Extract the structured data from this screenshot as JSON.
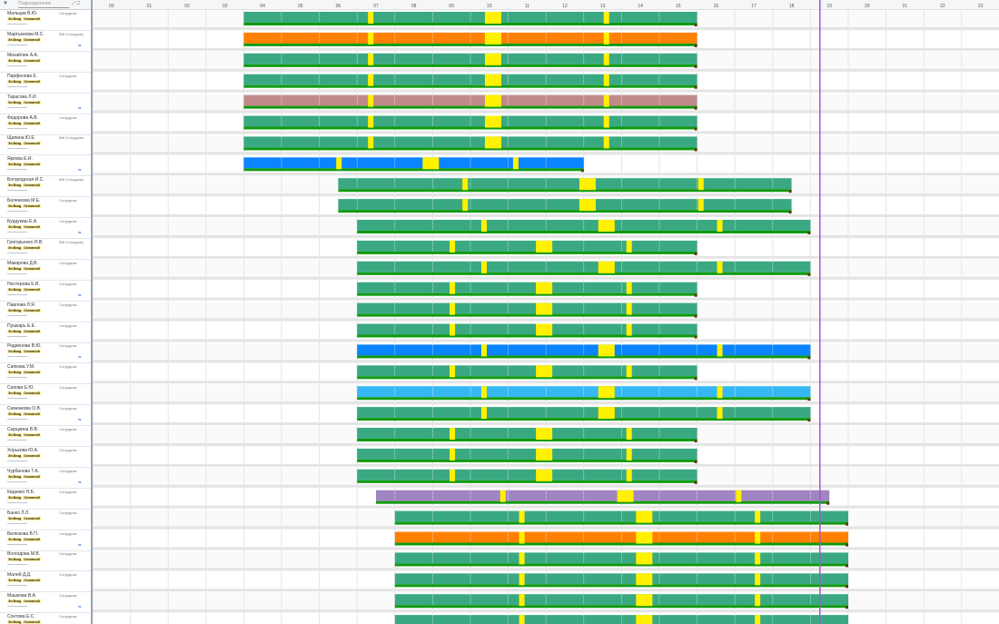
{
  "toolbar": {
    "filter_icon": "filter-icon",
    "search_placeholder": "Подразделение",
    "clear_icon": "close-icon"
  },
  "hour_labels": [
    "00",
    "01",
    "02",
    "03",
    "04",
    "05",
    "06",
    "07",
    "08",
    "09",
    "10",
    "11",
    "12",
    "13",
    "14",
    "15",
    "16",
    "17",
    "18",
    "19",
    "20",
    "21",
    "22",
    "23"
  ],
  "tag_primary": "Эл.Вход",
  "tag_secondary": "Основной",
  "colors": {
    "green": "#3aa982",
    "orange": "#ff7f00",
    "blue": "#0a84ff",
    "lightblue": "#36b8f5",
    "rose": "#c08a8a",
    "purple": "#a184c2",
    "yellow": "#fff100",
    "base": "#119a11",
    "now_line": "#9b59d0"
  },
  "employees": [
    {
      "name": "Мальцев В.Ю.",
      "role": "Сотрудник",
      "color": "green",
      "start": 4,
      "end": 16
    },
    {
      "name": "Мартынкова М.С.",
      "role": "ВЖ Сотрудник",
      "color": "orange",
      "start": 4,
      "end": 16
    },
    {
      "name": "Михайлин А.А.",
      "role": "",
      "color": "green",
      "start": 4,
      "end": 16
    },
    {
      "name": "Парфенова Е.",
      "role": "Сотрудник",
      "color": "green",
      "start": 4,
      "end": 16
    },
    {
      "name": "Тарасова Л.И.",
      "role": "",
      "color": "rose",
      "start": 4,
      "end": 16
    },
    {
      "name": "Федорова А.В.",
      "role": "Сотрудник",
      "color": "green",
      "start": 4,
      "end": 16
    },
    {
      "name": "Щипина Ю.Е.",
      "role": "ВЖ Сотрудник",
      "color": "green",
      "start": 4,
      "end": 16
    },
    {
      "name": "Яркова Е.И.",
      "role": "",
      "color": "blue",
      "start": 4,
      "end": 13
    },
    {
      "name": "Богородская И.С.",
      "role": "ВЖ Сотрудник",
      "color": "green",
      "start": 6.5,
      "end": 18.5
    },
    {
      "name": "Беленкова М.Е.",
      "role": "Сотрудник",
      "color": "green",
      "start": 6.5,
      "end": 18.5
    },
    {
      "name": "Бурдукиш Е.А.",
      "role": "Сотрудник",
      "color": "green",
      "start": 7,
      "end": 19
    },
    {
      "name": "Григорьенко Н.В.",
      "role": "ВЖ Сотрудник",
      "color": "green",
      "start": 7,
      "end": 16
    },
    {
      "name": "Макарова Д.В.",
      "role": "Сотрудник",
      "color": "green",
      "start": 7,
      "end": 19
    },
    {
      "name": "Нестерова Е.В.",
      "role": "Сотрудник",
      "color": "green",
      "start": 7,
      "end": 16
    },
    {
      "name": "Павлова Л.Я.",
      "role": "Сотрудник",
      "color": "green",
      "start": 7,
      "end": 16
    },
    {
      "name": "Пушкарь Е.Е.",
      "role": "Сотрудник",
      "color": "green",
      "start": 7,
      "end": 16
    },
    {
      "name": "Родионова В.Ю.",
      "role": "Сотрудник",
      "color": "blue",
      "start": 7,
      "end": 19
    },
    {
      "name": "Сапкова У.М.",
      "role": "Сотрудник",
      "color": "green",
      "start": 7,
      "end": 16
    },
    {
      "name": "Сапова Е.Ю.",
      "role": "Сотрудник",
      "color": "lightblue",
      "start": 7,
      "end": 19
    },
    {
      "name": "Семенкова О.В.",
      "role": "Сотрудник",
      "color": "green",
      "start": 7,
      "end": 19
    },
    {
      "name": "Сырцкина В.В.",
      "role": "Сотрудник",
      "color": "green",
      "start": 7,
      "end": 16
    },
    {
      "name": "Хорькова Ю.А.",
      "role": "Сотрудник",
      "color": "green",
      "start": 7,
      "end": 16
    },
    {
      "name": "Чурбанова Т.А.",
      "role": "Сотрудник",
      "color": "green",
      "start": 7,
      "end": 16
    },
    {
      "name": "Кидняко Н.Б.",
      "role": "Сотрудник",
      "color": "purple",
      "start": 7.5,
      "end": 19.5
    },
    {
      "name": "Банко Л.Л.",
      "role": "Сотрудник",
      "color": "green",
      "start": 8,
      "end": 20
    },
    {
      "name": "Билюкова В.П.",
      "role": "Сотрудник",
      "color": "orange",
      "start": 8,
      "end": 20
    },
    {
      "name": "Вологдова М.В.",
      "role": "Сотрудник",
      "color": "green",
      "start": 8,
      "end": 20
    },
    {
      "name": "Малей Д.Д.",
      "role": "Сотрудник",
      "color": "green",
      "start": 8,
      "end": 20
    },
    {
      "name": "Машкова В.А.",
      "role": "Сотрудник",
      "color": "green",
      "start": 8,
      "end": 20
    },
    {
      "name": "Сонтова Е.С.",
      "role": "Сотрудник",
      "color": "green",
      "start": 8,
      "end": 20
    }
  ],
  "current_time_hour": 19.25,
  "balance_icon": "scales-icon"
}
